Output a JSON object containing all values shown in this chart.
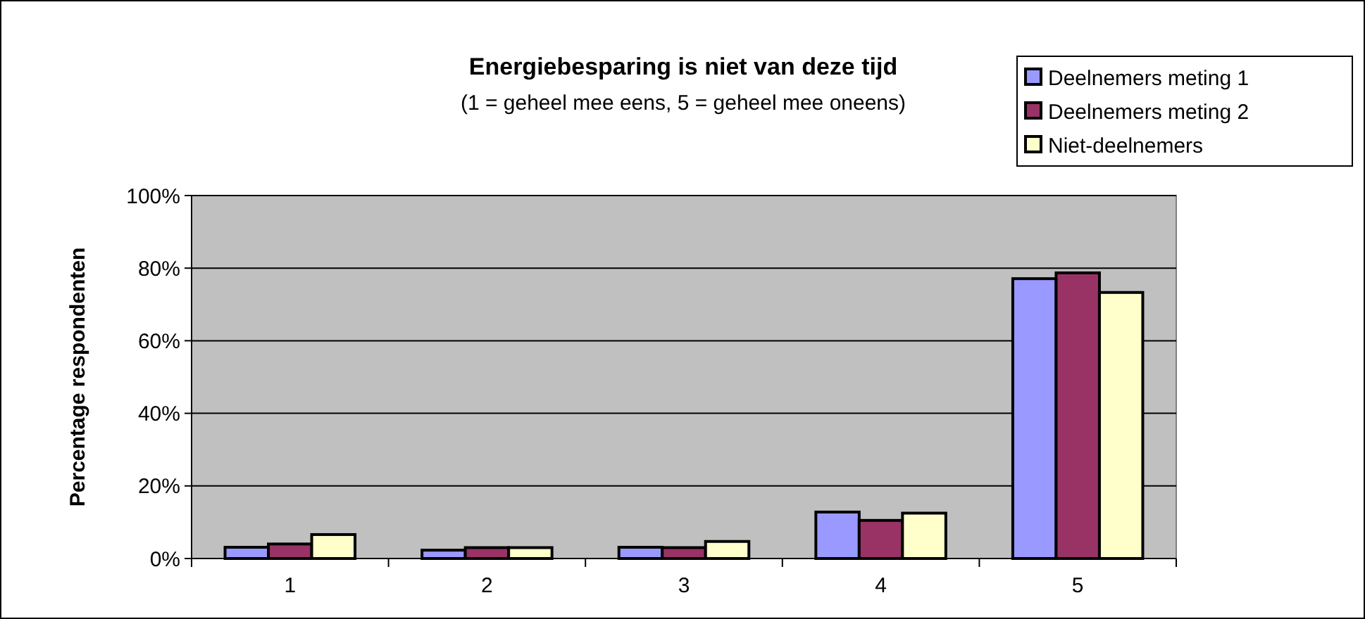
{
  "chart_data": {
    "type": "bar",
    "title": "Energiebesparing is niet van deze tijd",
    "subtitle": "(1 = geheel mee eens, 5 = geheel mee oneens)",
    "ylabel": "Percentage respondenten",
    "categories": [
      "1",
      "2",
      "3",
      "4",
      "5"
    ],
    "series": [
      {
        "name": "Deelnemers meting 1",
        "color": "#9999ff",
        "values": [
          3.1,
          2.3,
          3.1,
          12.8,
          77.1
        ]
      },
      {
        "name": "Deelnemers meting 2",
        "color": "#993366",
        "values": [
          4.0,
          3.0,
          3.0,
          10.5,
          78.7
        ]
      },
      {
        "name": "Niet-deelnemers",
        "color": "#ffffcc",
        "values": [
          6.6,
          3.0,
          4.7,
          12.5,
          73.3
        ]
      }
    ],
    "ylim": [
      0,
      100
    ],
    "yticks": [
      {
        "value": 0,
        "label": "0%"
      },
      {
        "value": 20,
        "label": "20%"
      },
      {
        "value": 40,
        "label": "40%"
      },
      {
        "value": 60,
        "label": "60%"
      },
      {
        "value": 80,
        "label": "80%"
      },
      {
        "value": 100,
        "label": "100%"
      }
    ],
    "grid": "y",
    "legend": "top right"
  }
}
